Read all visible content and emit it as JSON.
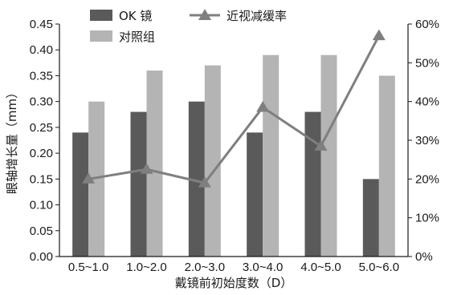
{
  "chart_data": {
    "type": "bar",
    "categories": [
      "0.5~1.0",
      "1.0~2.0",
      "2.0~3.0",
      "3.0~4.0",
      "4.0~5.0",
      "5.0~6.0"
    ],
    "series": [
      {
        "name": "OK 镜",
        "type": "bar",
        "axis": "left",
        "color": "#5a5a5a",
        "values": [
          0.24,
          0.28,
          0.3,
          0.24,
          0.28,
          0.15
        ]
      },
      {
        "name": "对照组",
        "type": "bar",
        "axis": "left",
        "color": "#b4b4b4",
        "values": [
          0.3,
          0.36,
          0.37,
          0.39,
          0.39,
          0.35
        ]
      },
      {
        "name": "近视减缓率",
        "type": "line",
        "axis": "right",
        "marker": "triangle",
        "color": "#7f7f7f",
        "values": [
          20,
          22.5,
          19,
          38.5,
          28.5,
          57
        ]
      }
    ],
    "xlabel": "戴镜前初始度数（D）",
    "ylabel": "眼轴增长量（mm）",
    "ylim": [
      0,
      0.45
    ],
    "yticks": [
      "0.00",
      "0.05",
      "0.10",
      "0.15",
      "0.20",
      "0.25",
      "0.30",
      "0.35",
      "0.40",
      "0.45"
    ],
    "y2lim": [
      0,
      60
    ],
    "y2ticks": [
      "0%",
      "10%",
      "20%",
      "30%",
      "40%",
      "50%",
      "60%"
    ],
    "legend": "top",
    "grid": false
  }
}
